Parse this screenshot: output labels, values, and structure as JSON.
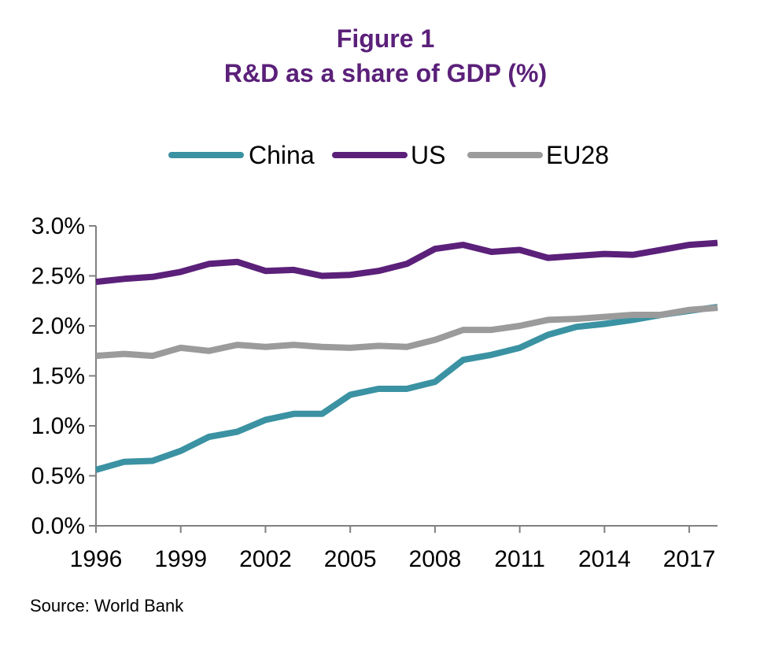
{
  "chart_data": {
    "type": "line",
    "title": "Figure 1",
    "subtitle": "R&D as a share of GDP (%)",
    "source": "Source: World Bank",
    "xlabel": "",
    "ylabel": "",
    "x": [
      1996,
      1997,
      1998,
      1999,
      2000,
      2001,
      2002,
      2003,
      2004,
      2005,
      2006,
      2007,
      2008,
      2009,
      2010,
      2011,
      2012,
      2013,
      2014,
      2015,
      2016,
      2017,
      2018
    ],
    "xlim": [
      1996,
      2018
    ],
    "ylim": [
      0,
      3.0
    ],
    "x_ticks": [
      1996,
      1999,
      2002,
      2005,
      2008,
      2011,
      2014,
      2017
    ],
    "x_tick_labels": [
      "1996",
      "1999",
      "2002",
      "2005",
      "2008",
      "2011",
      "2014",
      "2017"
    ],
    "y_ticks": [
      0,
      0.5,
      1.0,
      1.5,
      2.0,
      2.5,
      3.0
    ],
    "y_tick_labels": [
      "0.0%",
      "0.5%",
      "1.0%",
      "1.5%",
      "2.0%",
      "2.5%",
      "3.0%"
    ],
    "grid": false,
    "legend_position": "top",
    "series": [
      {
        "name": "China",
        "color": "#3a92a2",
        "values": [
          0.56,
          0.64,
          0.65,
          0.75,
          0.89,
          0.94,
          1.06,
          1.12,
          1.12,
          1.31,
          1.37,
          1.37,
          1.44,
          1.66,
          1.71,
          1.78,
          1.91,
          1.99,
          2.02,
          2.06,
          2.11,
          2.15,
          2.19
        ]
      },
      {
        "name": "US",
        "color": "#5b2079",
        "values": [
          2.44,
          2.47,
          2.49,
          2.54,
          2.62,
          2.64,
          2.55,
          2.56,
          2.5,
          2.51,
          2.55,
          2.62,
          2.77,
          2.81,
          2.74,
          2.76,
          2.68,
          2.7,
          2.72,
          2.71,
          2.76,
          2.81,
          2.83
        ]
      },
      {
        "name": "EU28",
        "color": "#9b9b9b",
        "values": [
          1.7,
          1.72,
          1.7,
          1.78,
          1.75,
          1.81,
          1.79,
          1.81,
          1.79,
          1.78,
          1.8,
          1.79,
          1.86,
          1.96,
          1.96,
          2.0,
          2.06,
          2.07,
          2.09,
          2.11,
          2.11,
          2.16,
          2.18
        ]
      }
    ]
  },
  "colors": {
    "title": "#5b2079",
    "axis": "#808080",
    "text": "#000000"
  }
}
